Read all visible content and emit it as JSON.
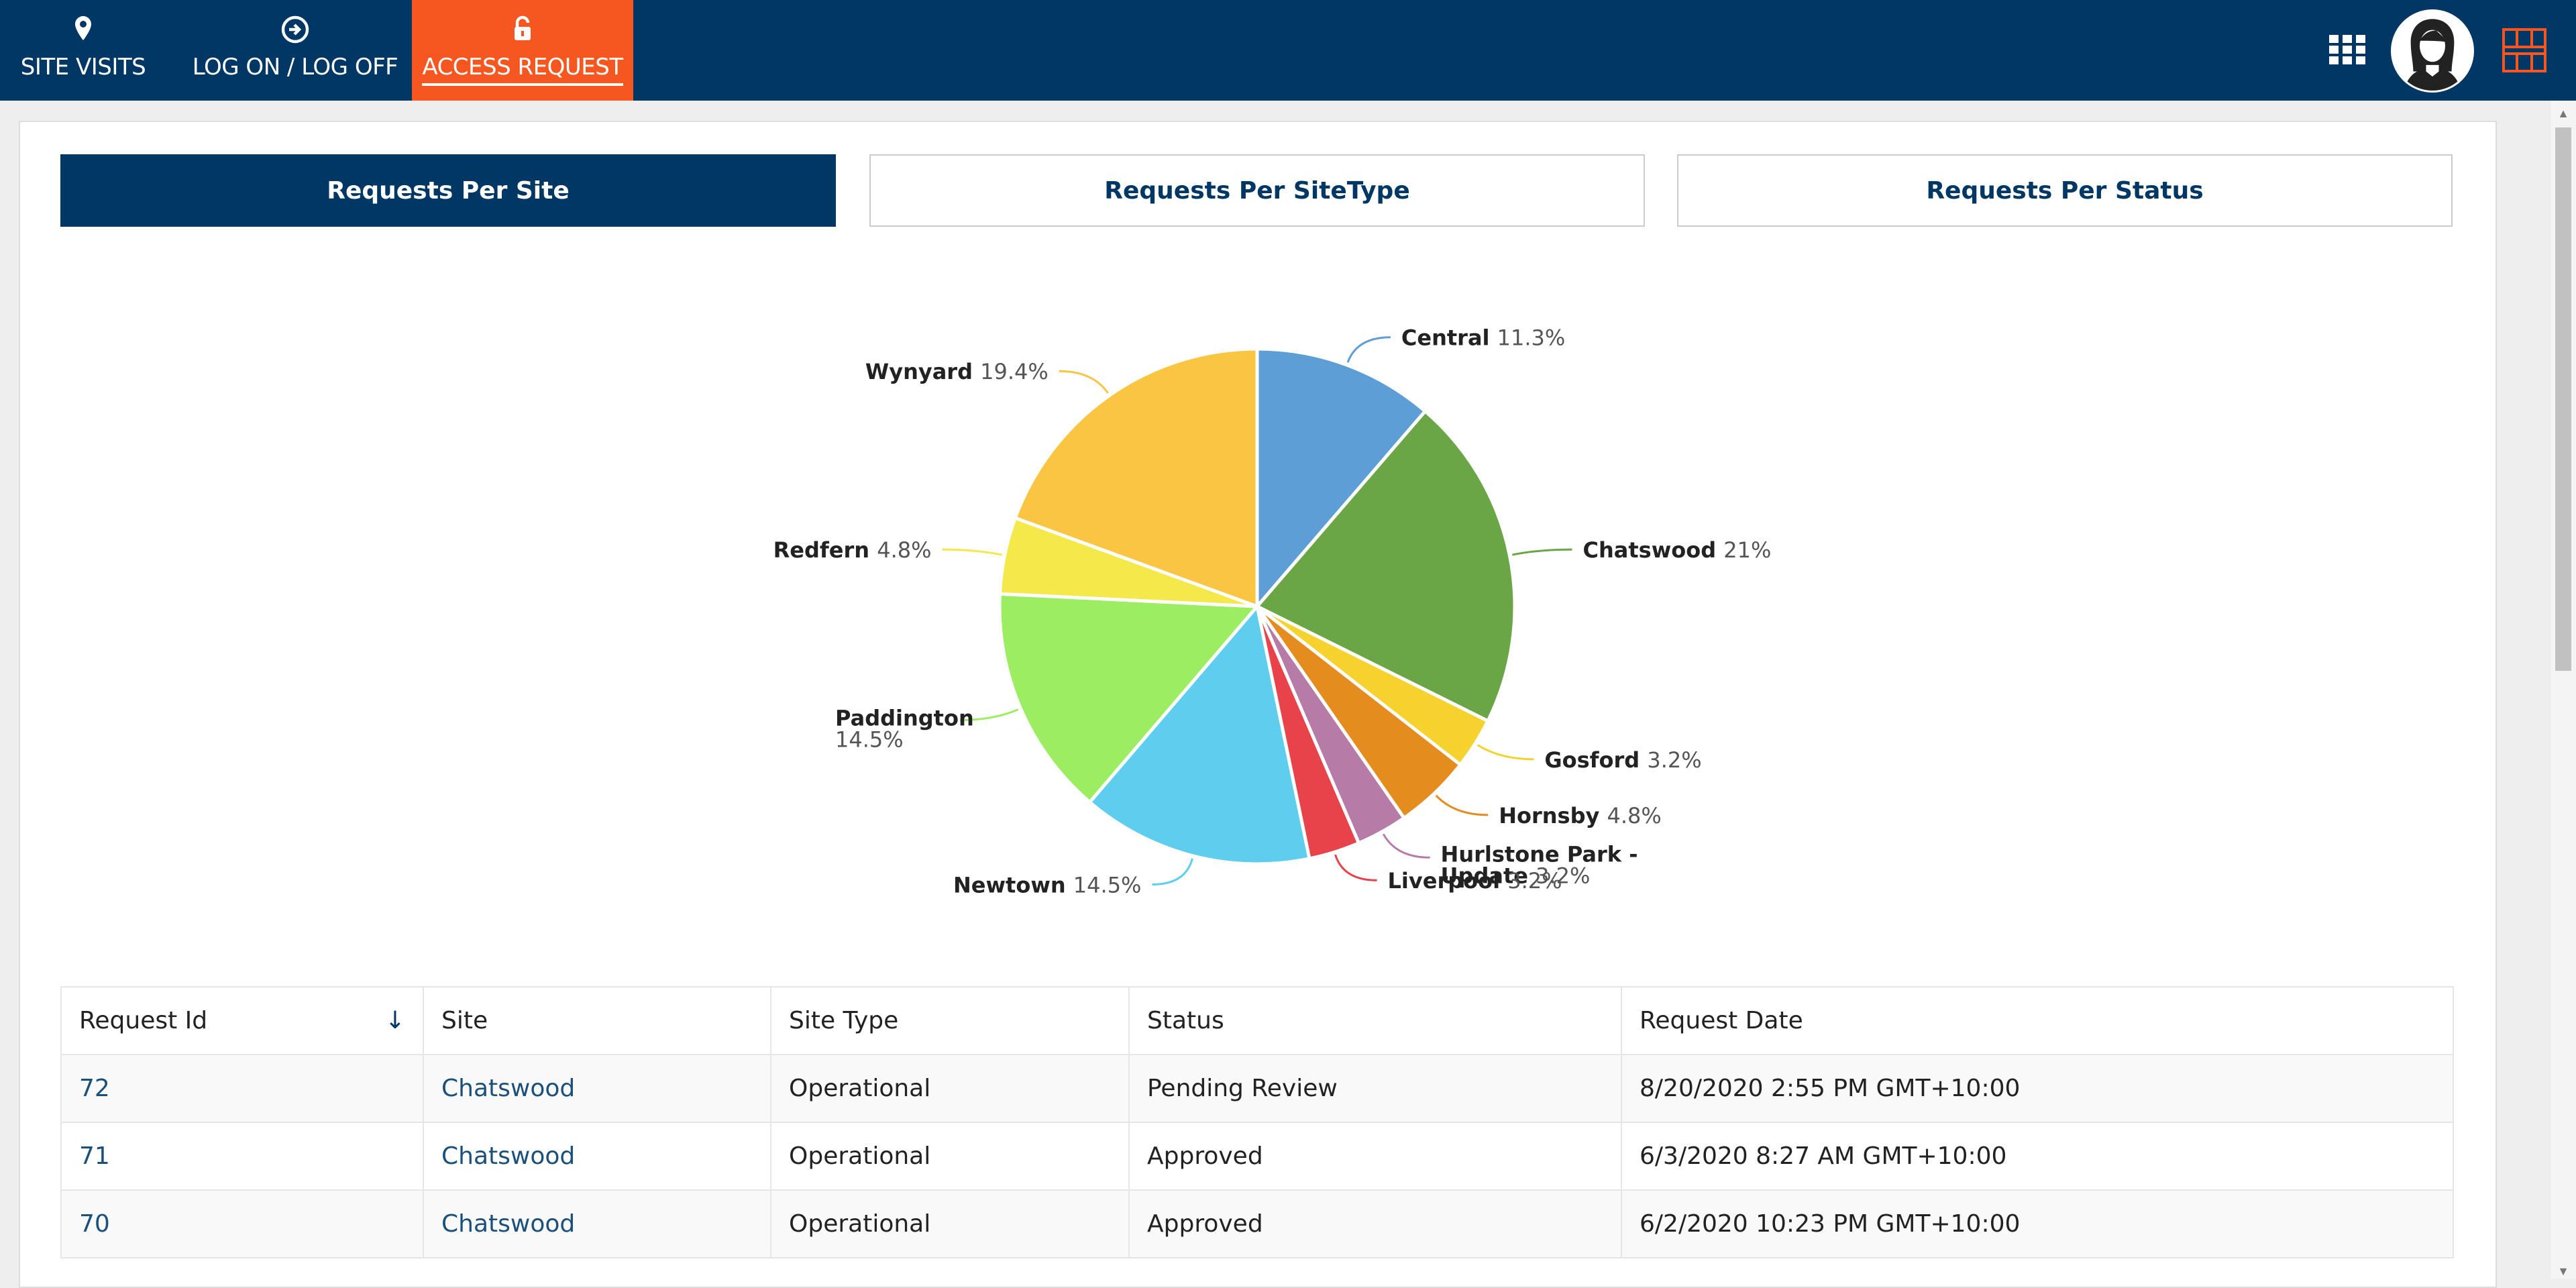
{
  "nav": {
    "items": [
      {
        "label": "SITE VISITS",
        "icon": "map-pin-icon"
      },
      {
        "label": "LOG ON / LOG OFF",
        "icon": "arrow-circle-icon"
      },
      {
        "label": "ACCESS REQUEST",
        "icon": "unlock-icon",
        "active": true
      }
    ],
    "accent": "#f65721",
    "background": "#003764"
  },
  "tabs": [
    {
      "label": "Requests Per Site",
      "active": true
    },
    {
      "label": "Requests Per SiteType",
      "active": false
    },
    {
      "label": "Requests Per Status",
      "active": false
    }
  ],
  "chart_data": {
    "type": "pie",
    "slices": [
      {
        "name": "Central",
        "value": 11.3,
        "label": "11.3%",
        "color": "#5e9ed6"
      },
      {
        "name": "Chatswood",
        "value": 21,
        "label": "21%",
        "color": "#6aa646"
      },
      {
        "name": "Gosford",
        "value": 3.2,
        "label": "3.2%",
        "color": "#f5d22d"
      },
      {
        "name": "Hornsby",
        "value": 4.8,
        "label": "4.8%",
        "color": "#e58c1f"
      },
      {
        "name": "Hurlstone Park - Update",
        "name_lines": [
          "Hurlstone Park -",
          "Update"
        ],
        "value": 3.2,
        "label": "3.2%",
        "color": "#b67ba7"
      },
      {
        "name": "Liverpool",
        "value": 3.2,
        "label": "3.2%",
        "color": "#e8424a"
      },
      {
        "name": "Newtown",
        "value": 14.5,
        "label": "14.5%",
        "color": "#5fcdee"
      },
      {
        "name": "Paddington",
        "value": 14.5,
        "label": "14.5%",
        "color": "#9ded62",
        "two_line": true
      },
      {
        "name": "Redfern",
        "value": 4.8,
        "label": "4.8%",
        "color": "#f5e84a"
      },
      {
        "name": "Wynyard",
        "value": 19.4,
        "label": "19.4%",
        "color": "#fac543"
      }
    ]
  },
  "table": {
    "columns": [
      "Request Id",
      "Site",
      "Site Type",
      "Status",
      "Request Date"
    ],
    "rows": [
      [
        "72",
        "Chatswood",
        "Operational",
        "Pending Review",
        "8/20/2020 2:55 PM GMT+10:00"
      ],
      [
        "71",
        "Chatswood",
        "Operational",
        "Approved",
        "6/3/2020 8:27 AM GMT+10:00"
      ],
      [
        "70",
        "Chatswood",
        "Operational",
        "Approved",
        "6/2/2020 10:23 PM GMT+10:00"
      ]
    ]
  }
}
